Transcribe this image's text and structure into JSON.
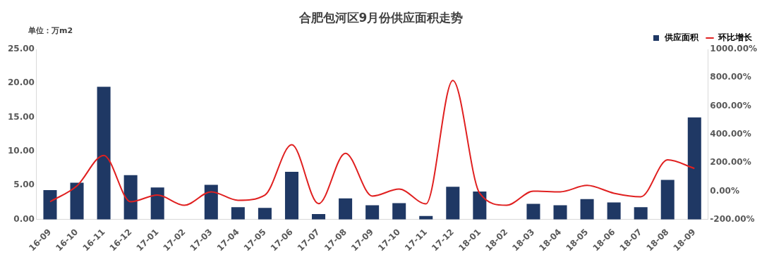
{
  "chart_data": {
    "type": "bar",
    "title": "合肥包河区9月份供应面积走势",
    "ylabel": "单位：万m2",
    "categories": [
      "16-09",
      "16-10",
      "16-11",
      "16-12",
      "17-01",
      "17-02",
      "17-03",
      "17-04",
      "17-05",
      "17-06",
      "17-07",
      "17-08",
      "17-09",
      "17-10",
      "17-11",
      "17-12",
      "18-01",
      "18-02",
      "18-03",
      "18-04",
      "18-05",
      "18-06",
      "18-07",
      "18-08",
      "18-09"
    ],
    "series": [
      {
        "name": "供应面积",
        "color": "#1f3864",
        "values": [
          4.3,
          5.4,
          19.5,
          6.5,
          4.7,
          0,
          5.1,
          1.8,
          1.7,
          7.0,
          0.8,
          3.1,
          2.1,
          2.4,
          0.5,
          4.8,
          4.1,
          0,
          2.3,
          2.1,
          3.0,
          2.5,
          1.8,
          5.8,
          15.0
        ]
      },
      {
        "name": "环比增长",
        "type": "line",
        "axis": "y2",
        "color": "#e02020",
        "values": [
          -75,
          37,
          252,
          -75,
          -28,
          -100,
          -5,
          -65,
          -28,
          327,
          -89,
          266,
          -35,
          14,
          -90,
          780,
          -15,
          -100,
          0,
          -5,
          40,
          -15,
          -40,
          220,
          160
        ]
      }
    ],
    "ylim": [
      0,
      25
    ],
    "yticks": [
      {
        "value": 0,
        "label": "0.00"
      },
      {
        "value": 5,
        "label": "5.00"
      },
      {
        "value": 10,
        "label": "10.00"
      },
      {
        "value": 15,
        "label": "15.00"
      },
      {
        "value": 20,
        "label": "20.00"
      },
      {
        "value": 25,
        "label": "25.00"
      }
    ],
    "y2lim": [
      -200,
      1000
    ],
    "y2ticks": [
      {
        "value": -200,
        "label": "-200.00%"
      },
      {
        "value": 0,
        "label": "0.00%"
      },
      {
        "value": 200,
        "label": "200.00%"
      },
      {
        "value": 400,
        "label": "400.00%"
      },
      {
        "value": 600,
        "label": "600.00%"
      },
      {
        "value": 800,
        "label": "800.00%"
      },
      {
        "value": 1000,
        "label": "1000.00%"
      }
    ],
    "grid": false,
    "legend": "top right",
    "marker": "none",
    "line_style": "solid"
  }
}
